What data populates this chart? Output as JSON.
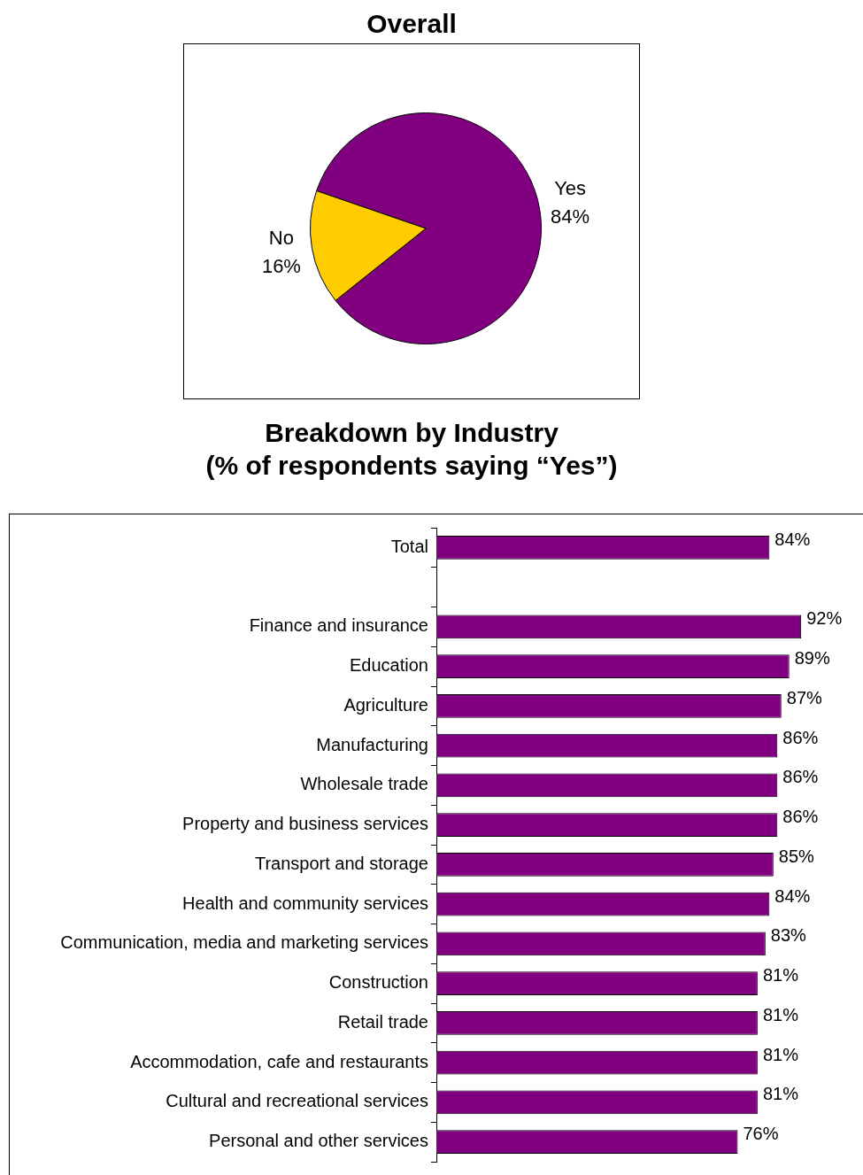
{
  "chart_data": [
    {
      "type": "pie",
      "title": "Overall",
      "categories": [
        "Yes",
        "No"
      ],
      "values": [
        84,
        16
      ],
      "colors": [
        "#800080",
        "#ffcc00"
      ],
      "value_labels": [
        "84%",
        "16%"
      ]
    },
    {
      "type": "bar",
      "orientation": "horizontal",
      "title": "Breakdown by Industry\n(% of respondents saying “Yes”)",
      "categories": [
        "Total",
        null,
        "Finance and insurance",
        "Education",
        "Agriculture",
        "Manufacturing",
        "Wholesale trade",
        "Property and business services",
        "Transport and storage",
        "Health and community services",
        "Communication, media and marketing services",
        "Construction",
        "Retail trade",
        "Accommodation, cafe and restaurants",
        "Cultural and recreational services",
        "Personal and other services"
      ],
      "values": [
        84,
        null,
        92,
        89,
        87,
        86,
        86,
        86,
        85,
        84,
        83,
        81,
        81,
        81,
        81,
        76
      ],
      "color": "#800080",
      "value_labels": [
        "84%",
        null,
        "92%",
        "89%",
        "87%",
        "86%",
        "86%",
        "86%",
        "85%",
        "84%",
        "83%",
        "81%",
        "81%",
        "81%",
        "81%",
        "76%"
      ]
    }
  ]
}
